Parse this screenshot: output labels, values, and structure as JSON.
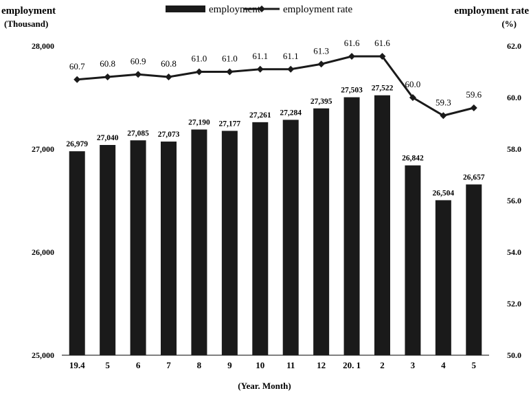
{
  "chart_data": {
    "type": "bar+line",
    "categories": [
      "19.4",
      "5",
      "6",
      "7",
      "8",
      "9",
      "10",
      "11",
      "12",
      "20. 1",
      "2",
      "3",
      "4",
      "5"
    ],
    "series": [
      {
        "name": "employment",
        "type": "bar",
        "axis": "left",
        "values": [
          26979,
          27040,
          27085,
          27073,
          27190,
          27177,
          27261,
          27284,
          27395,
          27503,
          27522,
          26842,
          26504,
          26657
        ],
        "labels": [
          "26,979",
          "27,040",
          "27,085",
          "27,073",
          "27,190",
          "27,177",
          "27,261",
          "27,284",
          "27,395",
          "27,503",
          "27,522",
          "26,842",
          "26,504",
          "26,657"
        ]
      },
      {
        "name": "employment rate",
        "type": "line",
        "axis": "right",
        "values": [
          60.7,
          60.8,
          60.9,
          60.8,
          61.0,
          61.0,
          61.1,
          61.1,
          61.3,
          61.6,
          61.6,
          60.0,
          59.3,
          59.6
        ],
        "labels": [
          "60.7",
          "60.8",
          "60.9",
          "60.8",
          "61.0",
          "61.0",
          "61.1",
          "61.1",
          "61.3",
          "61.6",
          "61.6",
          "60.0",
          "59.3",
          "59.6"
        ]
      }
    ],
    "y_left": {
      "label_line1": "employment",
      "label_line2": "(Thousand)",
      "ylim": [
        25000,
        28000
      ],
      "ticks": [
        25000,
        26000,
        27000,
        28000
      ],
      "tick_labels": [
        "25,000",
        "26,000",
        "27,000",
        "28,000"
      ]
    },
    "y_right": {
      "label_line1": "employment rate",
      "label_line2": "(%)",
      "ylim": [
        50.0,
        62.0
      ],
      "ticks": [
        50.0,
        52.0,
        54.0,
        56.0,
        58.0,
        60.0,
        62.0
      ],
      "tick_labels": [
        "50.0",
        "52.0",
        "54.0",
        "56.0",
        "58.0",
        "60.0",
        "62.0"
      ]
    },
    "xlabel": "(Year. Month)",
    "legend_position": "top-center",
    "grid": false,
    "colors": {
      "bar": "#1a1a1a",
      "line": "#1a1a1a"
    }
  }
}
